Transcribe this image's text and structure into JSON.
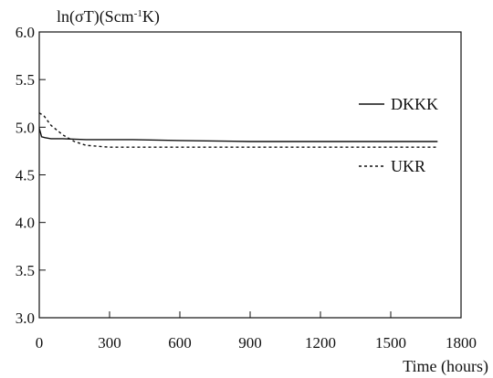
{
  "chart_data": {
    "type": "line",
    "title": "",
    "ylabel_parts": {
      "pre": "ln(σT)(Scm",
      "sup": "-1",
      "post": "K)"
    },
    "xlabel": "Time (hours)",
    "xlim": [
      0,
      1800
    ],
    "ylim": [
      3.0,
      6.0
    ],
    "xticks": [
      0,
      300,
      600,
      900,
      1200,
      1500,
      1800
    ],
    "xtick_labels": [
      "0",
      "300",
      "600",
      "900",
      "1200",
      "1500",
      "1800"
    ],
    "yticks": [
      3.0,
      3.5,
      4.0,
      4.5,
      5.0,
      5.5,
      6.0
    ],
    "ytick_labels": [
      "3.0",
      "3.5",
      "4.0",
      "4.5",
      "5.0",
      "5.5",
      "6.0"
    ],
    "grid": false,
    "legend_placement": "right",
    "series": [
      {
        "name": "DKKK",
        "style": "solid",
        "color": "#111111",
        "x": [
          0,
          10,
          25,
          50,
          100,
          200,
          400,
          600,
          900,
          1200,
          1500,
          1700
        ],
        "y": [
          4.99,
          4.9,
          4.89,
          4.88,
          4.88,
          4.87,
          4.87,
          4.86,
          4.85,
          4.85,
          4.85,
          4.85
        ]
      },
      {
        "name": "UKR",
        "style": "dotted",
        "color": "#111111",
        "x": [
          0,
          20,
          50,
          100,
          150,
          200,
          300,
          450,
          600,
          900,
          1200,
          1500,
          1700
        ],
        "y": [
          5.15,
          5.12,
          5.02,
          4.92,
          4.85,
          4.81,
          4.79,
          4.79,
          4.79,
          4.79,
          4.79,
          4.79,
          4.79
        ]
      }
    ]
  }
}
